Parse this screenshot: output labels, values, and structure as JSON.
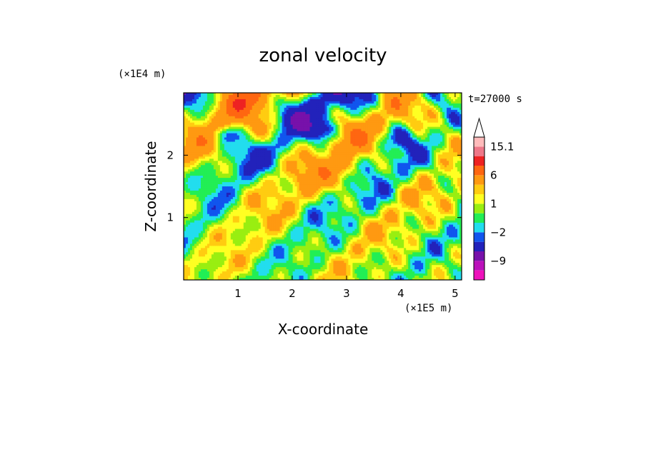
{
  "chart_data": {
    "type": "heatmap",
    "title": "zonal velocity",
    "xlabel": "X-coordinate",
    "ylabel": "Z-coordinate",
    "x_unit": "(×1E5 m)",
    "y_unit": "(×1E4 m)",
    "time_label": "t=27000 s",
    "xlim": [
      0,
      5.12
    ],
    "ylim": [
      0,
      3.0
    ],
    "x_ticks": [
      1,
      2,
      3,
      4,
      5
    ],
    "y_ticks": [
      1,
      2
    ],
    "x_tick_labels": [
      "1",
      "2",
      "3",
      "4",
      "5"
    ],
    "y_tick_labels": [
      "1",
      "2"
    ],
    "grid": false,
    "colorbar": {
      "levels": [
        -15,
        -12,
        -9,
        -6,
        -3,
        -2,
        -1,
        0,
        1,
        2,
        3,
        6,
        9,
        12,
        15.1
      ],
      "labeled_levels": [
        "15.1",
        "6",
        "1",
        "−2",
        "−9"
      ],
      "labeled_values": [
        15.1,
        6,
        1,
        -2,
        -9
      ],
      "colors": [
        "#ee11bb",
        "#bb11bb",
        "#7711aa",
        "#2222bb",
        "#1155ee",
        "#22ddee",
        "#22ee55",
        "#99ee11",
        "#ffff22",
        "#ffcc11",
        "#ff9911",
        "#ff6611",
        "#ee2222",
        "#ee7788",
        "#ffbbbb"
      ],
      "extend": "max"
    },
    "field_range": [
      -15,
      16
    ],
    "dominant_pattern": "wave-like bands sloping from lower-left to upper-right, mostly green/yellow near bottom with orange/blue/magenta patches near top"
  }
}
